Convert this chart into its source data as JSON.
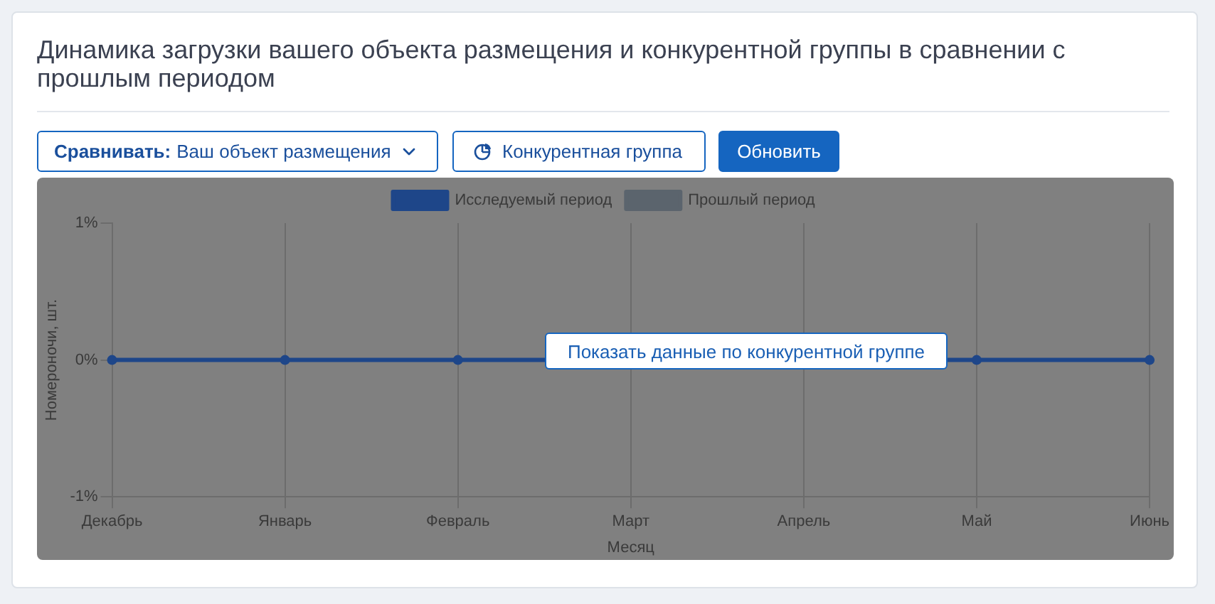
{
  "chart_data": {
    "type": "line",
    "title": "Динамика загрузки вашего объекта размещения и конкурентной группы в сравнении с прошлым периодом",
    "xlabel": "Месяц",
    "ylabel": "Номероночи, шт.",
    "categories": [
      "Декабрь",
      "Январь",
      "Февраль",
      "Март",
      "Апрель",
      "Май",
      "Июнь"
    ],
    "series": [
      {
        "name": "Исследуемый период",
        "color": "#1e4689",
        "values": [
          0,
          0,
          0,
          null,
          null,
          0,
          0
        ]
      },
      {
        "name": "Прошлый период",
        "color": "#5b646d",
        "values": [
          null,
          null,
          null,
          null,
          null,
          null,
          null
        ]
      }
    ],
    "ylim": [
      -1,
      1
    ],
    "yticks": [
      {
        "value": -1,
        "label": "-1%"
      },
      {
        "value": 0,
        "label": "0%"
      },
      {
        "value": 1,
        "label": "1%"
      }
    ],
    "grid": "x",
    "legend": "top",
    "marker": "circle",
    "line_style": "solid",
    "annotations": [
      "Сравнивать:",
      "Ваш объект размещения",
      "Конкурентная группа",
      "Обновить",
      "Показать данные по конкурентной группе"
    ]
  }
}
